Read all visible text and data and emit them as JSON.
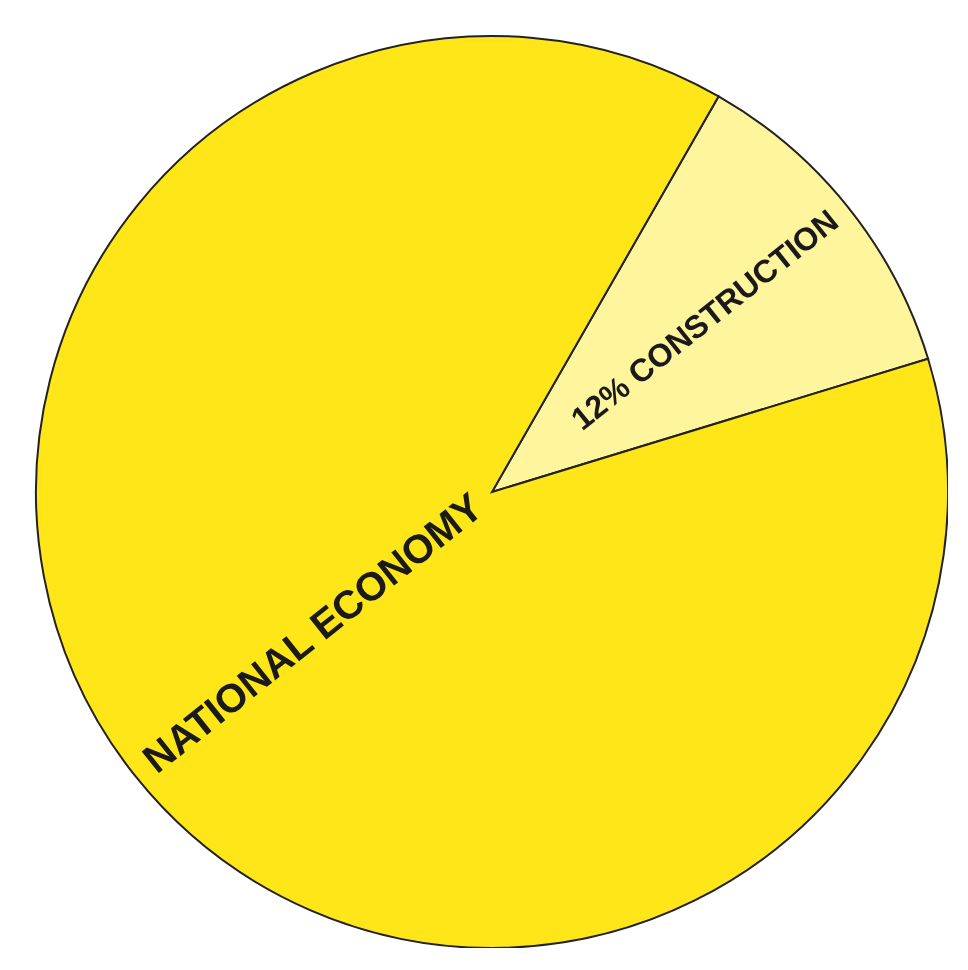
{
  "chart_data": {
    "type": "pie",
    "categories": [
      "CONSTRUCTION",
      "NATIONAL ECONOMY"
    ],
    "values": [
      12,
      88
    ],
    "colors": [
      "#fff59d",
      "#ffe619"
    ],
    "value_labels": [
      "12%",
      null
    ]
  }
}
